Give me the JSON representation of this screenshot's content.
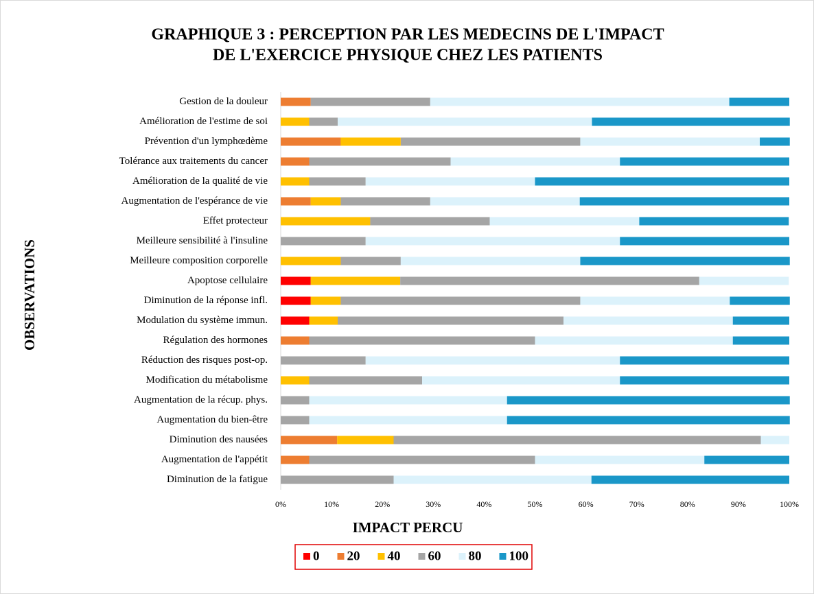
{
  "chart_data": {
    "type": "stacked-barh",
    "title": [
      "GRAPHIQUE 3 : PERCEPTION PAR LES MEDECINS DE L'IMPACT",
      "DE L'EXERCICE PHYSIQUE CHEZ LES PATIENTS"
    ],
    "xlabel": "IMPACT PERCU",
    "ylabel": "OBSERVATIONS",
    "categories": [
      "Gestion de la douleur",
      "Amélioration de l'estime de soi",
      "Prévention  d'un lymphœdème",
      "Tolérance aux traitements du cancer",
      "Amélioration de la qualité de vie",
      "Augmentation de l'espérance de vie",
      "Effet protecteur ",
      "Meilleure sensibilité à l'insuline",
      "Meilleure composition corporelle",
      "Apoptose cellulaire",
      "Diminution de la réponse infl.",
      "Modulation du système immun.",
      "Régulation des hormones",
      "Réduction des risques post-op.",
      "Modification du métabolisme",
      "Augmentation de la récup. phys.",
      "Augmentation du bien-être",
      "Diminution des nausées",
      "Augmentation de l'appétit",
      "Diminution de la fatigue"
    ],
    "series": [
      {
        "name": "0",
        "color": "#ff0000",
        "values": [
          0,
          0,
          0,
          0,
          0,
          0,
          0,
          0,
          0,
          5.9,
          5.9,
          5.6,
          0,
          0,
          0,
          0,
          0,
          0,
          0,
          0
        ]
      },
      {
        "name": "20",
        "color": "#ed7d31",
        "values": [
          5.9,
          0,
          11.8,
          5.6,
          0,
          5.9,
          0,
          0,
          0,
          0,
          0,
          0,
          5.6,
          0,
          0,
          0,
          0,
          11.1,
          5.6,
          0
        ]
      },
      {
        "name": "40",
        "color": "#ffc000",
        "values": [
          0,
          5.6,
          11.8,
          0,
          5.6,
          5.9,
          17.6,
          0,
          11.8,
          17.6,
          5.9,
          5.6,
          0,
          0,
          5.6,
          0,
          0,
          11.1,
          0,
          0
        ]
      },
      {
        "name": "60",
        "color": "#a5a5a5",
        "values": [
          23.5,
          5.6,
          35.3,
          27.8,
          11.1,
          17.6,
          23.5,
          16.7,
          11.8,
          58.8,
          47.1,
          44.4,
          44.4,
          16.7,
          22.2,
          5.6,
          5.6,
          72.2,
          44.4,
          22.2
        ]
      },
      {
        "name": "80",
        "color": "#dcf2fb",
        "values": [
          58.8,
          50,
          35.3,
          33.3,
          33.3,
          29.4,
          29.4,
          50,
          35.3,
          17.6,
          29.4,
          33.3,
          38.9,
          50,
          38.9,
          38.9,
          38.9,
          5.6,
          33.3,
          38.9
        ]
      },
      {
        "name": "100",
        "color": "#1a97c8",
        "values": [
          11.8,
          38.9,
          5.9,
          33.3,
          50,
          41.2,
          29.4,
          33.3,
          41.2,
          0,
          11.8,
          11.1,
          11.1,
          33.3,
          33.3,
          55.6,
          55.6,
          0,
          16.7,
          38.9
        ]
      }
    ],
    "xlim": [
      0,
      100
    ],
    "xticks": [
      {
        "value": 0,
        "label": "0%"
      },
      {
        "value": 10,
        "label": "10%"
      },
      {
        "value": 20,
        "label": "20%"
      },
      {
        "value": 30,
        "label": "30%"
      },
      {
        "value": 40,
        "label": "40%"
      },
      {
        "value": 50,
        "label": "50%"
      },
      {
        "value": 60,
        "label": "60%"
      },
      {
        "value": 70,
        "label": "70%"
      },
      {
        "value": 80,
        "label": "80%"
      },
      {
        "value": 90,
        "label": "90%"
      },
      {
        "value": 100,
        "label": "100%"
      }
    ],
    "legend": "bottom"
  }
}
